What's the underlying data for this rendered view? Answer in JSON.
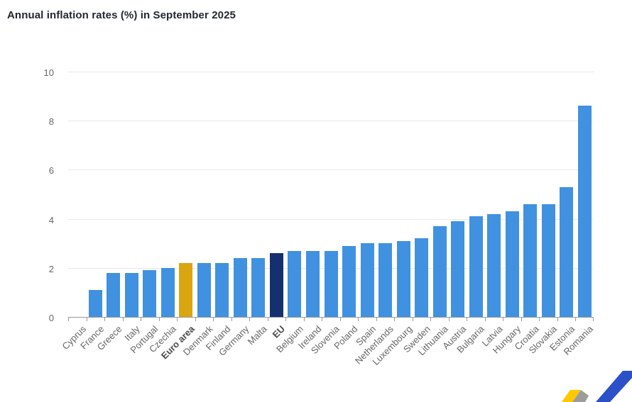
{
  "header": {
    "title": "Annual inflation rates (%) in September 2025"
  },
  "chart_data": {
    "type": "bar",
    "title": "Annual inflation rates (%) in September 2025",
    "xlabel": "",
    "ylabel": "",
    "ylim": [
      0,
      10
    ],
    "yticks": [
      0,
      2,
      4,
      6,
      8,
      10
    ],
    "grid": true,
    "legend": "none",
    "categories": [
      "Cyprus",
      "France",
      "Greece",
      "Italy",
      "Portugal",
      "Czechia",
      "Euro area",
      "Denmark",
      "Finland",
      "Germany",
      "Malta",
      "EU",
      "Belgium",
      "Ireland",
      "Slovenia",
      "Poland",
      "Spain",
      "Netherlands",
      "Luxembourg",
      "Sweden",
      "Lithuania",
      "Austria",
      "Bulgaria",
      "Latvia",
      "Hungary",
      "Croatia",
      "Slovakia",
      "Estonia",
      "Romania"
    ],
    "values": [
      0,
      1.1,
      1.8,
      1.8,
      1.9,
      2.0,
      2.2,
      2.2,
      2.2,
      2.4,
      2.4,
      2.6,
      2.7,
      2.7,
      2.7,
      2.9,
      3.0,
      3.0,
      3.1,
      3.2,
      3.7,
      3.9,
      4.1,
      4.2,
      4.3,
      4.6,
      4.6,
      5.3,
      8.6
    ],
    "emphasized_categories": [
      "Euro area",
      "EU"
    ],
    "bar_colors": {
      "default": "#4191E1",
      "Euro area": "#D9A511",
      "EU": "#14306F"
    }
  },
  "colors": {
    "background": "#FFFFFF",
    "title": "#232730",
    "axis": "#9A9A9A",
    "grid": "#E8E8E8",
    "tick_label": "#666666",
    "emphasized_label": "#4A4A4A",
    "logo_blue": "#2B50C8",
    "logo_yellow": "#FDC800",
    "logo_gray": "#9C9C9C"
  },
  "icons": {
    "logo": "eurostat-logo-mark"
  }
}
